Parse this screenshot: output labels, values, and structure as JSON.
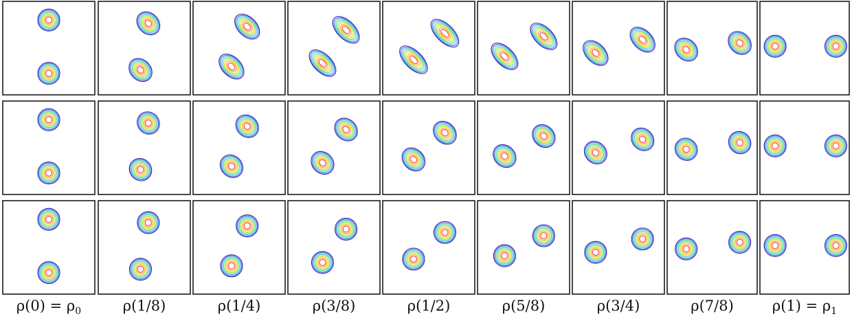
{
  "columns": [
    {
      "label": [
        "ρ(0) = ρ",
        "0"
      ],
      "t": 0.0
    },
    {
      "label": [
        "ρ(1/8)",
        ""
      ],
      "t": 0.125
    },
    {
      "label": [
        "ρ(1/4)",
        ""
      ],
      "t": 0.25
    },
    {
      "label": [
        "ρ(3/8)",
        ""
      ],
      "t": 0.375
    },
    {
      "label": [
        "ρ(1/2)",
        ""
      ],
      "t": 0.5
    },
    {
      "label": [
        "ρ(5/8)",
        ""
      ],
      "t": 0.625
    },
    {
      "label": [
        "ρ(3/4)",
        ""
      ],
      "t": 0.75
    },
    {
      "label": [
        "ρ(7/8)",
        ""
      ],
      "t": 0.875
    },
    {
      "label": [
        "ρ(1) = ρ",
        "1"
      ],
      "t": 1.0
    }
  ],
  "rows": [
    {
      "elongation": [
        1.0,
        1.15,
        1.35,
        1.5,
        1.6,
        1.5,
        1.35,
        1.15,
        1.0
      ]
    },
    {
      "elongation": [
        1.0,
        1.05,
        1.1,
        1.12,
        1.15,
        1.12,
        1.1,
        1.05,
        1.0
      ]
    },
    {
      "elongation": [
        1.0,
        1.0,
        1.0,
        1.0,
        1.0,
        1.0,
        1.0,
        1.0,
        1.0
      ]
    }
  ],
  "contour_colors": [
    "#2b1fa8",
    "#4a6ee0",
    "#5fc8f0",
    "#4fe0b0",
    "#b4e84a",
    "#f0d23a",
    "#f59a2a",
    "#e8402a"
  ]
}
